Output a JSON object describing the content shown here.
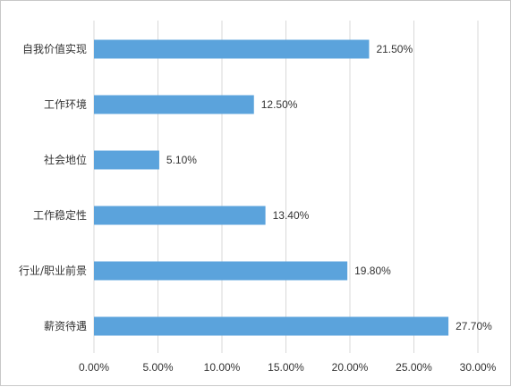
{
  "chart_data": {
    "type": "bar",
    "orientation": "horizontal",
    "categories": [
      "自我价值实现",
      "工作环境",
      "社会地位",
      "工作稳定性",
      "行业/职业前景",
      "薪资待遇"
    ],
    "values": [
      21.5,
      12.5,
      5.1,
      13.4,
      19.8,
      27.7
    ],
    "data_labels": [
      "21.50%",
      "12.50%",
      "5.10%",
      "13.40%",
      "19.80%",
      "27.70%"
    ],
    "xlim": [
      0,
      30
    ],
    "x_ticks": [
      0,
      5,
      10,
      15,
      20,
      25,
      30
    ],
    "x_tick_labels": [
      "0.00%",
      "5.00%",
      "10.00%",
      "15.00%",
      "20.00%",
      "25.00%",
      "30.00%"
    ],
    "grid": "vertical",
    "legend": "none",
    "bar_color": "#5ba3dc",
    "grid_color": "#d9d9d9",
    "title": "",
    "xlabel": "",
    "ylabel": ""
  }
}
